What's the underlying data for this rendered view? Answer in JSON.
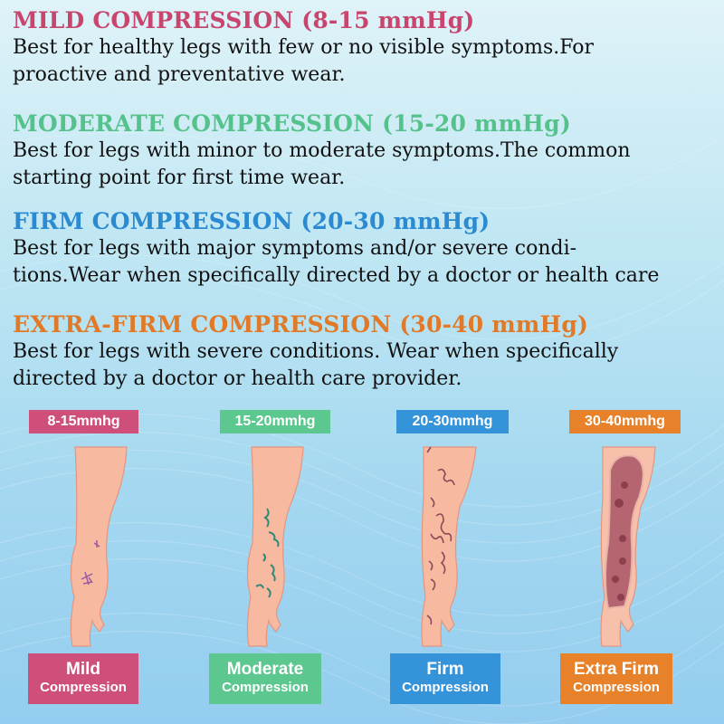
{
  "colors": {
    "mild": "#cf4f7b",
    "moderate": "#5cc78f",
    "firm": "#3593da",
    "extra_firm": "#e8822a",
    "skin": "#f7b9a0"
  },
  "sections": [
    {
      "heading": "MILD COMPRESSION (8-15 mmHg)",
      "lines": [
        "Best for healthy legs with few or no visible symptoms.For",
        "proactive and preventative wear."
      ]
    },
    {
      "heading": "MODERATE COMPRESSION (15-20 mmHg)",
      "lines": [
        "Best for legs with minor to moderate symptoms.The common",
        "starting point for first time wear."
      ]
    },
    {
      "heading": "FIRM COMPRESSION (20-30 mmHg)",
      "lines": [
        "Best for legs with major symptoms and/or severe condi-",
        "tions.Wear when specifically directed by a doctor or health care"
      ]
    },
    {
      "heading": "EXTRA-FIRM COMPRESSION (30-40 mmHg)",
      "lines": [
        "Best for legs with severe conditions. Wear when specifically",
        "directed by a doctor or health care provider."
      ]
    }
  ],
  "legs": [
    {
      "badge": "8-15mmhg",
      "title": "Mild",
      "subtitle": "Compression"
    },
    {
      "badge": "15-20mmhg",
      "title": "Moderate",
      "subtitle": "Compression"
    },
    {
      "badge": "20-30mmhg",
      "title": "Firm",
      "subtitle": "Compression"
    },
    {
      "badge": "30-40mmhg",
      "title": "Extra Firm",
      "subtitle": "Compression"
    }
  ]
}
